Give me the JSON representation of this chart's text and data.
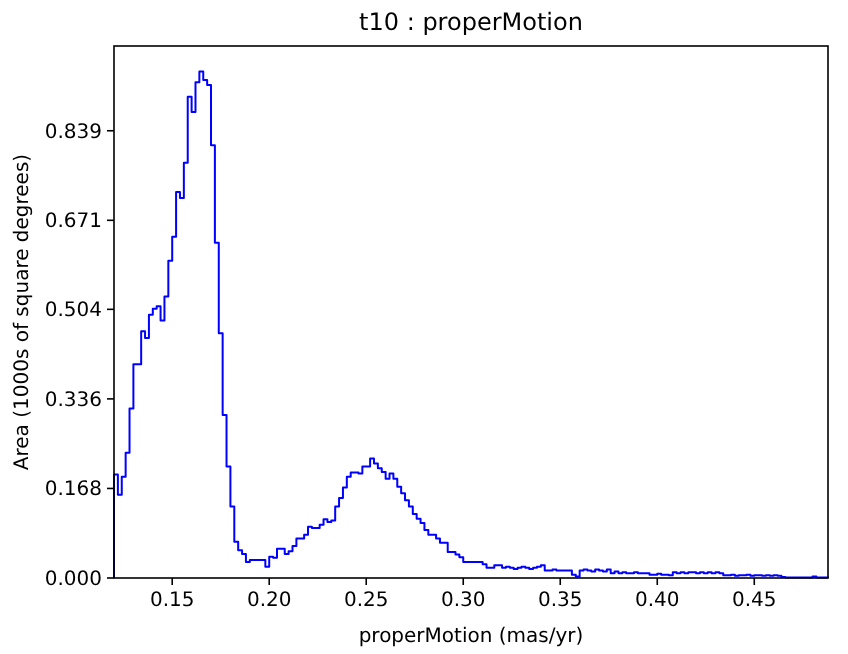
{
  "chart_data": {
    "type": "histogram",
    "title": "t10 : properMotion",
    "xlabel": "properMotion (mas/yr)",
    "ylabel": "Area (1000s of square degrees)",
    "color": "#0000ff",
    "bins": [
      0.12,
      0.122,
      0.124,
      0.126,
      0.128,
      0.13,
      0.132,
      0.134,
      0.136,
      0.138,
      0.14,
      0.142,
      0.144,
      0.146,
      0.148,
      0.15,
      0.152,
      0.154,
      0.156,
      0.158,
      0.16,
      0.162,
      0.164,
      0.166,
      0.168,
      0.17,
      0.172,
      0.174,
      0.176,
      0.178,
      0.18,
      0.182,
      0.184,
      0.186,
      0.188,
      0.19,
      0.192,
      0.194,
      0.196,
      0.198,
      0.2,
      0.202,
      0.204,
      0.206,
      0.208,
      0.21,
      0.212,
      0.214,
      0.216,
      0.218,
      0.22,
      0.222,
      0.224,
      0.226,
      0.228,
      0.23,
      0.232,
      0.234,
      0.236,
      0.238,
      0.24,
      0.242,
      0.244,
      0.246,
      0.248,
      0.25,
      0.252,
      0.254,
      0.256,
      0.258,
      0.26,
      0.262,
      0.264,
      0.266,
      0.268,
      0.27,
      0.272,
      0.274,
      0.276,
      0.278,
      0.28,
      0.282,
      0.284,
      0.286,
      0.288,
      0.29,
      0.292,
      0.294,
      0.296,
      0.298,
      0.3,
      0.302,
      0.304,
      0.306,
      0.308,
      0.31,
      0.312,
      0.314,
      0.316,
      0.318,
      0.32,
      0.322,
      0.324,
      0.326,
      0.328,
      0.33,
      0.332,
      0.334,
      0.336,
      0.338,
      0.34,
      0.342,
      0.344,
      0.346,
      0.348,
      0.35,
      0.352,
      0.354,
      0.356,
      0.358,
      0.36,
      0.362,
      0.364,
      0.366,
      0.368,
      0.37,
      0.372,
      0.374,
      0.376,
      0.378,
      0.38,
      0.382,
      0.384,
      0.386,
      0.388,
      0.39,
      0.392,
      0.394,
      0.396,
      0.398,
      0.4,
      0.402,
      0.404,
      0.406,
      0.408,
      0.41,
      0.412,
      0.414,
      0.416,
      0.418,
      0.42,
      0.422,
      0.424,
      0.426,
      0.428,
      0.43,
      0.432,
      0.434,
      0.436,
      0.438,
      0.44,
      0.442,
      0.444,
      0.446,
      0.448,
      0.45,
      0.452,
      0.454,
      0.456,
      0.458,
      0.46,
      0.462,
      0.464,
      0.466,
      0.468,
      0.47,
      0.472,
      0.474,
      0.476,
      0.478,
      0.48,
      0.482,
      0.484,
      0.486,
      0.488
    ],
    "values": [
      0.194,
      0.156,
      0.19,
      0.235,
      0.318,
      0.401,
      0.401,
      0.463,
      0.45,
      0.494,
      0.505,
      0.51,
      0.483,
      0.528,
      0.595,
      0.64,
      0.724,
      0.713,
      0.779,
      0.903,
      0.874,
      0.93,
      0.95,
      0.934,
      0.925,
      0.812,
      0.629,
      0.459,
      0.306,
      0.209,
      0.134,
      0.068,
      0.052,
      0.045,
      0.03,
      0.034,
      0.034,
      0.034,
      0.034,
      0.021,
      0.04,
      0.038,
      0.055,
      0.055,
      0.045,
      0.05,
      0.06,
      0.074,
      0.074,
      0.081,
      0.096,
      0.094,
      0.094,
      0.1,
      0.11,
      0.105,
      0.108,
      0.134,
      0.15,
      0.17,
      0.19,
      0.198,
      0.198,
      0.196,
      0.209,
      0.209,
      0.224,
      0.215,
      0.206,
      0.199,
      0.186,
      0.196,
      0.186,
      0.171,
      0.159,
      0.146,
      0.134,
      0.12,
      0.111,
      0.103,
      0.09,
      0.081,
      0.081,
      0.074,
      0.066,
      0.066,
      0.049,
      0.049,
      0.044,
      0.039,
      0.03,
      0.03,
      0.03,
      0.03,
      0.03,
      0.026,
      0.019,
      0.019,
      0.024,
      0.024,
      0.019,
      0.021,
      0.019,
      0.017,
      0.019,
      0.021,
      0.019,
      0.017,
      0.019,
      0.021,
      0.024,
      0.014,
      0.014,
      0.016,
      0.014,
      0.014,
      0.014,
      0.014,
      0.006,
      0.003,
      0.014,
      0.016,
      0.014,
      0.012,
      0.016,
      0.014,
      0.012,
      0.016,
      0.009,
      0.012,
      0.009,
      0.011,
      0.009,
      0.009,
      0.011,
      0.009,
      0.009,
      0.009,
      0.006,
      0.006,
      0.008,
      0.006,
      0.006,
      0.005,
      0.011,
      0.009,
      0.011,
      0.009,
      0.011,
      0.011,
      0.009,
      0.011,
      0.009,
      0.011,
      0.009,
      0.011,
      0.009,
      0.005,
      0.005,
      0.006,
      0.004,
      0.005,
      0.005,
      0.006,
      0.004,
      0.005,
      0.005,
      0.004,
      0.005,
      0.004,
      0.005,
      0.004,
      0.002,
      0.001,
      0.001,
      0.001,
      0.001,
      0.001,
      0.001,
      0.001,
      0.003,
      0.001,
      0.001,
      0.001
    ],
    "xlim": [
      0.12,
      0.488
    ],
    "ylim": [
      0,
      0.998
    ],
    "xticks": [
      {
        "value": 0.15,
        "label": "0.15"
      },
      {
        "value": 0.2,
        "label": "0.20"
      },
      {
        "value": 0.25,
        "label": "0.25"
      },
      {
        "value": 0.3,
        "label": "0.30"
      },
      {
        "value": 0.35,
        "label": "0.35"
      },
      {
        "value": 0.4,
        "label": "0.40"
      },
      {
        "value": 0.45,
        "label": "0.45"
      }
    ],
    "yticks": [
      {
        "value": 0,
        "label": "0.000"
      },
      0.168,
      0.336,
      0.504,
      0.671,
      0.839
    ]
  }
}
